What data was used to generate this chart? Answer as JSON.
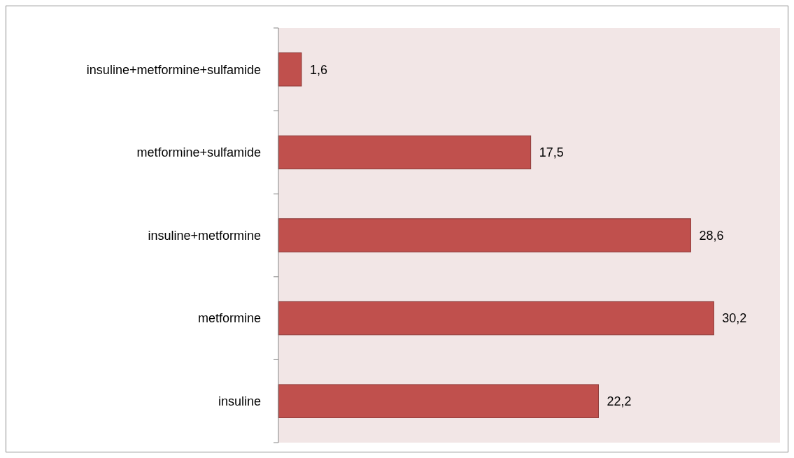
{
  "chart_data": {
    "type": "bar",
    "orientation": "horizontal",
    "categories": [
      "insuline+metformine+sulfamide",
      "metformine+sulfamide",
      "insuline+metformine",
      "metformine",
      "insuline"
    ],
    "values": [
      1.6,
      17.5,
      28.6,
      30.2,
      22.2
    ],
    "value_labels": [
      "1,6",
      "17,5",
      "28,6",
      "30,2",
      "22,2"
    ],
    "color": "#c0504d"
  }
}
